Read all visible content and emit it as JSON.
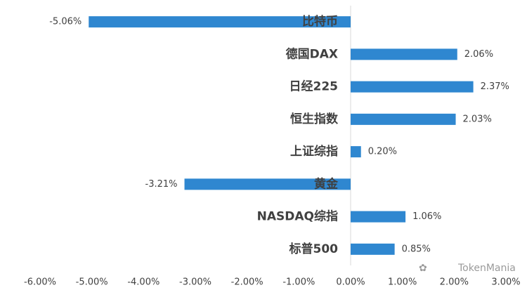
{
  "chart_data": {
    "type": "hbar",
    "categories": [
      "比特币",
      "德国DAX",
      "日经225",
      "恒生指数",
      "上证综指",
      "黄金",
      "NASDAQ综指",
      "标普500"
    ],
    "values": [
      -5.06,
      2.06,
      2.37,
      2.03,
      0.2,
      -3.21,
      1.06,
      0.85
    ],
    "value_labels": [
      "-5.06%",
      "2.06%",
      "2.37%",
      "2.03%",
      "0.20%",
      "-3.21%",
      "1.06%",
      "0.85%"
    ],
    "color": "#2f87d0",
    "xlim": [
      -6,
      3
    ],
    "xticks": [
      {
        "value": -6,
        "label": "-6.00%"
      },
      {
        "value": -5,
        "label": "-5.00%"
      },
      {
        "value": -4,
        "label": "-4.00%"
      },
      {
        "value": -3,
        "label": "-3.00%"
      },
      {
        "value": -2,
        "label": "-2.00%"
      },
      {
        "value": -1,
        "label": "-1.00%"
      },
      {
        "value": 0,
        "label": "0.00%"
      },
      {
        "value": 1,
        "label": "1.00%"
      },
      {
        "value": 2,
        "label": "2.00%"
      },
      {
        "value": 3,
        "label": "3.00%"
      }
    ],
    "watermark": "TokenMania"
  }
}
